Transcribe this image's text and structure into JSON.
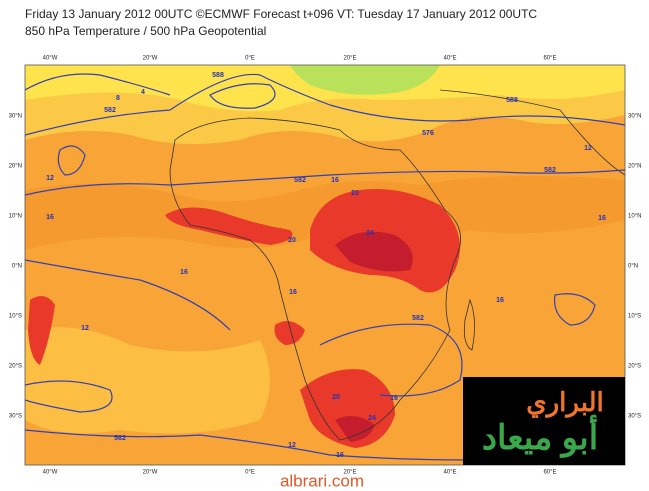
{
  "header": {
    "line1": "Friday 13 January 2012 00UTC ©ECMWF Forecast t+096 VT: Tuesday 17 January 2012 00UTC",
    "line2": "850 hPa Temperature / 500 hPa Geopotential"
  },
  "map": {
    "longitude_labels": [
      "40°W",
      "20°W",
      "0°E",
      "20°E",
      "40°E",
      "60°E"
    ],
    "latitude_labels": [
      "30°N",
      "20°N",
      "10°N",
      "0°N",
      "10°S",
      "20°S",
      "30°S"
    ],
    "contour_labels": [
      "582",
      "588",
      "8",
      "4",
      "576",
      "12",
      "16",
      "582",
      "16",
      "20",
      "24",
      "20",
      "16",
      "16",
      "582",
      "12",
      "16",
      "20",
      "24",
      "16",
      "588",
      "582",
      "12",
      "16",
      "582",
      "12",
      "16"
    ]
  },
  "watermark": {
    "line1": "البراري",
    "line2": "أبو ميعاد",
    "site": "albrari.com"
  }
}
